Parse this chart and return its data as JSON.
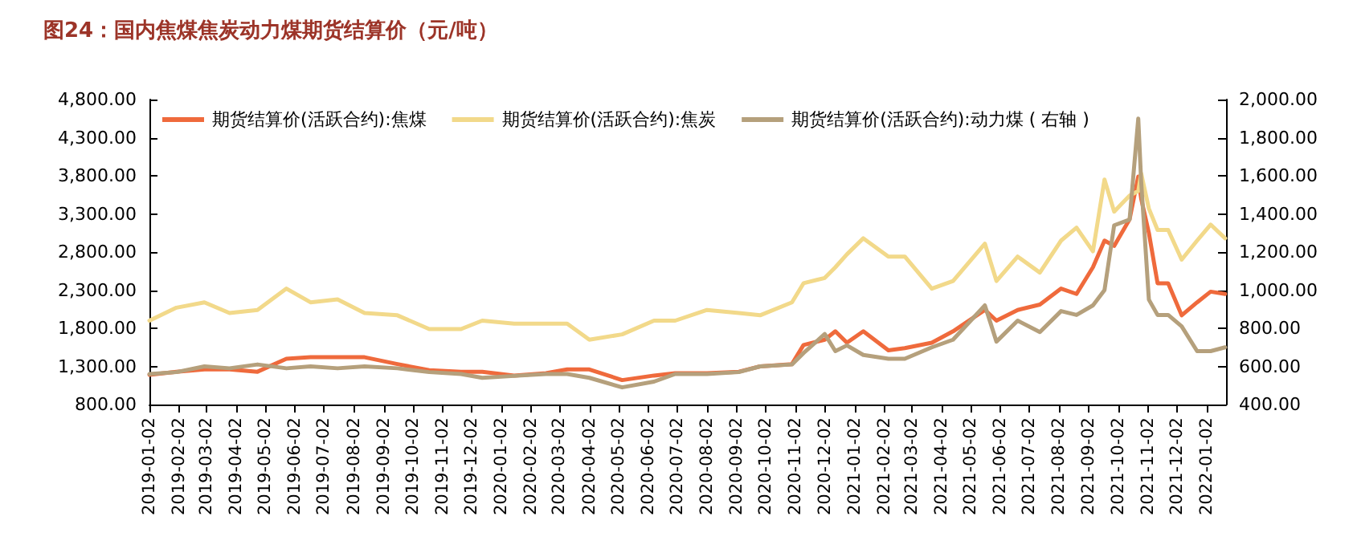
{
  "chart_data": {
    "type": "line",
    "title": "图24：国内焦煤焦炭动力煤期货结算价（元/吨）",
    "legend": "top",
    "grid": false,
    "marker": "none",
    "line_style": "solid",
    "x": [
      "2019-01-02",
      "2019-01-30",
      "2019-02-28",
      "2019-03-26",
      "2019-04-24",
      "2019-05-24",
      "2019-06-18",
      "2019-07-16",
      "2019-08-13",
      "2019-09-16",
      "2019-10-19",
      "2019-11-21",
      "2019-12-13",
      "2020-01-15",
      "2020-02-17",
      "2020-03-10",
      "2020-04-02",
      "2020-05-06",
      "2020-06-08",
      "2020-06-30",
      "2020-08-02",
      "2020-09-04",
      "2020-09-26",
      "2020-10-29",
      "2020-11-10",
      "2020-12-02",
      "2020-12-13",
      "2020-12-25",
      "2021-01-11",
      "2021-02-06",
      "2021-02-23",
      "2021-03-23",
      "2021-04-14",
      "2021-05-17",
      "2021-05-29",
      "2021-06-20",
      "2021-07-13",
      "2021-08-04",
      "2021-08-20",
      "2021-09-06",
      "2021-09-18",
      "2021-09-28",
      "2021-10-14",
      "2021-10-23",
      "2021-10-26",
      "2021-11-03",
      "2021-11-12",
      "2021-11-23",
      "2021-12-07",
      "2021-12-23",
      "2022-01-06",
      "2022-01-21"
    ],
    "series": [
      {
        "name": "期货结算价(活跃合约):焦煤",
        "color": "#ef6a3c",
        "values": [
          1190,
          1230,
          1260,
          1260,
          1230,
          1400,
          1420,
          1420,
          1420,
          1330,
          1250,
          1230,
          1230,
          1180,
          1210,
          1260,
          1260,
          1120,
          1180,
          1210,
          1210,
          1230,
          1300,
          1330,
          1580,
          1650,
          1760,
          1610,
          1760,
          1510,
          1540,
          1610,
          1760,
          2040,
          1900,
          2040,
          2110,
          2320,
          2250,
          2600,
          2950,
          2880,
          3230,
          3790,
          3500,
          3050,
          2390,
          2390,
          1970,
          2140,
          2280,
          2250
        ]
      },
      {
        "name": "期货结算价(活跃合约):焦炭",
        "color": "#f2d98a",
        "values": [
          1900,
          2070,
          2140,
          2000,
          2040,
          2320,
          2140,
          2180,
          2000,
          1970,
          1790,
          1790,
          1900,
          1860,
          1860,
          1860,
          1650,
          1720,
          1900,
          1900,
          2040,
          2000,
          1970,
          2140,
          2390,
          2460,
          2600,
          2770,
          2980,
          2740,
          2740,
          2320,
          2420,
          2910,
          2420,
          2740,
          2530,
          2950,
          3120,
          2810,
          3750,
          3330,
          3540,
          3600,
          3830,
          3370,
          3090,
          3090,
          2700,
          2950,
          3160,
          2980
        ]
      },
      {
        "name": "期货结算价(活跃合约):动力煤 ( 右轴 )",
        "color": "#b5a07c",
        "axis": "y2",
        "values": [
          560,
          570,
          600,
          590,
          610,
          590,
          600,
          590,
          600,
          590,
          570,
          560,
          540,
          550,
          560,
          560,
          540,
          490,
          520,
          560,
          560,
          570,
          600,
          610,
          670,
          770,
          680,
          710,
          660,
          640,
          640,
          700,
          740,
          920,
          730,
          840,
          780,
          890,
          870,
          920,
          1000,
          1340,
          1370,
          1900,
          1570,
          950,
          870,
          870,
          810,
          680,
          680,
          700
        ]
      }
    ],
    "xlim": [
      "2019-01-02",
      "2022-01-22"
    ],
    "xticks": [
      "2019-01-02",
      "2019-02-02",
      "2019-03-02",
      "2019-04-02",
      "2019-05-02",
      "2019-06-02",
      "2019-07-02",
      "2019-08-02",
      "2019-09-02",
      "2019-10-02",
      "2019-11-02",
      "2019-12-02",
      "2020-01-02",
      "2020-02-02",
      "2020-03-02",
      "2020-04-02",
      "2020-05-02",
      "2020-06-02",
      "2020-07-02",
      "2020-08-02",
      "2020-09-02",
      "2020-10-02",
      "2020-11-02",
      "2020-12-02",
      "2021-01-02",
      "2021-02-02",
      "2021-03-02",
      "2021-04-02",
      "2021-05-02",
      "2021-06-02",
      "2021-07-02",
      "2021-08-02",
      "2021-09-02",
      "2021-10-02",
      "2021-11-02",
      "2021-12-02",
      "2022-01-02"
    ],
    "ylim": [
      800,
      4800
    ],
    "yticks": [
      {
        "value": 800,
        "label": "800.00"
      },
      {
        "value": 1300,
        "label": "1,300.00"
      },
      {
        "value": 1800,
        "label": "1,800.00"
      },
      {
        "value": 2300,
        "label": "2,300.00"
      },
      {
        "value": 2800,
        "label": "2,800.00"
      },
      {
        "value": 3300,
        "label": "3,300.00"
      },
      {
        "value": 3800,
        "label": "3,800.00"
      },
      {
        "value": 4300,
        "label": "4,300.00"
      },
      {
        "value": 4800,
        "label": "4,800.00"
      }
    ],
    "y2lim": [
      400,
      2000
    ],
    "y2ticks": [
      {
        "value": 400,
        "label": "400.00"
      },
      {
        "value": 600,
        "label": "600.00"
      },
      {
        "value": 800,
        "label": "800.00"
      },
      {
        "value": 1000,
        "label": "1,000.00"
      },
      {
        "value": 1200,
        "label": "1,200.00"
      },
      {
        "value": 1400,
        "label": "1,400.00"
      },
      {
        "value": 1600,
        "label": "1,600.00"
      },
      {
        "value": 1800,
        "label": "1,800.00"
      },
      {
        "value": 2000,
        "label": "2,000.00"
      }
    ]
  }
}
